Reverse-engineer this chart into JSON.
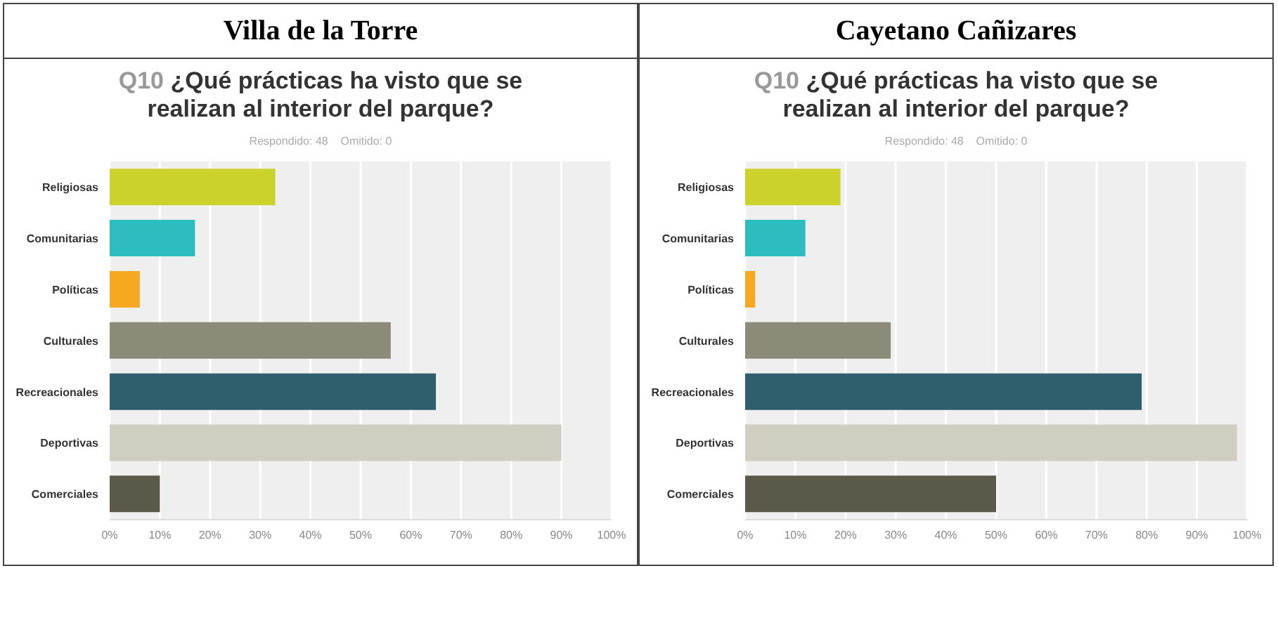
{
  "chart_data": [
    {
      "type": "bar",
      "orientation": "horizontal",
      "title": "Villa de la Torre",
      "subtitle": "Q10 ¿Qué prácticas ha visto que se realizan al interior del parque?",
      "annotations": [
        "Respondido: 48    Omitido: 0"
      ],
      "categories": [
        "Religiosas",
        "Comunitarias",
        "Políticas",
        "Culturales",
        "Recreacionales",
        "Deportivas",
        "Comerciales"
      ],
      "values": [
        33,
        17,
        6,
        56,
        65,
        90,
        10
      ],
      "colors": [
        "#ccd22c",
        "#2dbdc0",
        "#f4a921",
        "#8c8b7a",
        "#2f5e6c",
        "#d0cec1",
        "#5b5a4a"
      ],
      "xlim": [
        0,
        100
      ],
      "xticks": [
        {
          "value": 0,
          "label": "0%"
        },
        {
          "value": 10,
          "label": "10%"
        },
        {
          "value": 20,
          "label": "20%"
        },
        {
          "value": 30,
          "label": "30%"
        },
        {
          "value": 40,
          "label": "40%"
        },
        {
          "value": 50,
          "label": "50%"
        },
        {
          "value": 60,
          "label": "60%"
        },
        {
          "value": 70,
          "label": "70%"
        },
        {
          "value": 80,
          "label": "80%"
        },
        {
          "value": 90,
          "label": "90%"
        },
        {
          "value": 100,
          "label": "100%"
        }
      ],
      "grid": "x",
      "legend": false
    },
    {
      "type": "bar",
      "orientation": "horizontal",
      "title": "Cayetano Cañizares",
      "subtitle": "Q10 ¿Qué prácticas ha visto que se realizan al interior del parque?",
      "annotations": [
        "Respondido: 48    Omitido: 0"
      ],
      "categories": [
        "Religiosas",
        "Comunitarias",
        "Políticas",
        "Culturales",
        "Recreacionales",
        "Deportivas",
        "Comerciales"
      ],
      "values": [
        19,
        12,
        2,
        29,
        79,
        98,
        50
      ],
      "colors": [
        "#ccd22c",
        "#2dbdc0",
        "#f4a921",
        "#8c8b7a",
        "#2f5e6c",
        "#d0cec1",
        "#5b5a4a"
      ],
      "xlim": [
        0,
        100
      ],
      "xticks": [
        {
          "value": 0,
          "label": "0%"
        },
        {
          "value": 10,
          "label": "10%"
        },
        {
          "value": 20,
          "label": "20%"
        },
        {
          "value": 30,
          "label": "30%"
        },
        {
          "value": 40,
          "label": "40%"
        },
        {
          "value": 50,
          "label": "50%"
        },
        {
          "value": 60,
          "label": "60%"
        },
        {
          "value": 70,
          "label": "70%"
        },
        {
          "value": 80,
          "label": "80%"
        },
        {
          "value": 90,
          "label": "90%"
        },
        {
          "value": 100,
          "label": "100%"
        }
      ],
      "grid": "x",
      "legend": false
    }
  ]
}
